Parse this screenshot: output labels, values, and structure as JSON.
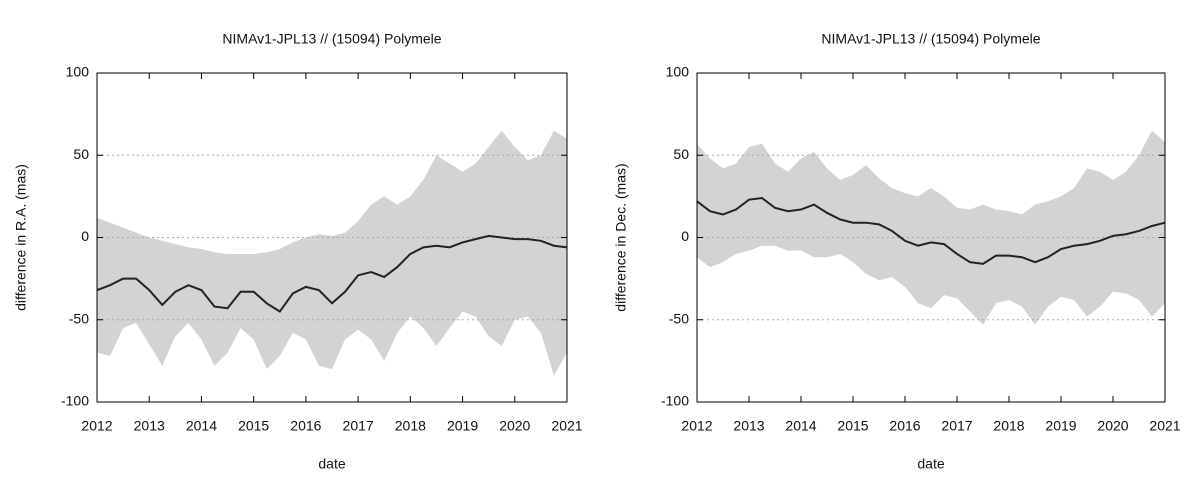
{
  "chart_data": [
    {
      "type": "line",
      "title": "NIMAv1-JPL13 // (15094) Polymele",
      "xlabel": "date",
      "ylabel": "difference in R.A. (mas)",
      "x": [
        2012,
        2012.25,
        2012.5,
        2012.75,
        2013,
        2013.25,
        2013.5,
        2013.75,
        2014,
        2014.25,
        2014.5,
        2014.75,
        2015,
        2015.25,
        2015.5,
        2015.75,
        2016,
        2016.25,
        2016.5,
        2016.75,
        2017,
        2017.25,
        2017.5,
        2017.75,
        2018,
        2018.25,
        2018.5,
        2018.75,
        2019,
        2019.25,
        2019.5,
        2019.75,
        2020,
        2020.25,
        2020.5,
        2020.75,
        2021
      ],
      "band": {
        "color": "#d3d3d3",
        "upper": [
          12,
          9,
          6,
          3,
          0,
          -2,
          -4,
          -6,
          -7,
          -9,
          -10,
          -10,
          -10,
          -9,
          -7,
          -3,
          0,
          2,
          1,
          3,
          10,
          20,
          25,
          20,
          25,
          35,
          50,
          45,
          40,
          45,
          55,
          65,
          55,
          47,
          50,
          65,
          60
        ],
        "lower": [
          -70,
          -72,
          -55,
          -52,
          -65,
          -78,
          -60,
          -52,
          -62,
          -78,
          -70,
          -55,
          -62,
          -80,
          -72,
          -58,
          -62,
          -78,
          -80,
          -62,
          -56,
          -62,
          -75,
          -58,
          -48,
          -55,
          -66,
          -55,
          -45,
          -48,
          -60,
          -66,
          -50,
          -48,
          -58,
          -84,
          -70
        ]
      },
      "series": [
        {
          "color": "#222222",
          "values": [
            -32,
            -29,
            -25,
            -25,
            -32,
            -41,
            -33,
            -29,
            -32,
            -42,
            -43,
            -33,
            -33,
            -40,
            -45,
            -34,
            -30,
            -32,
            -40,
            -33,
            -23,
            -21,
            -24,
            -18,
            -10,
            -6,
            -5,
            -6,
            -3,
            -1,
            1,
            0,
            -1,
            -1,
            -2,
            -5,
            -6
          ]
        }
      ],
      "xlim": [
        2012,
        2021
      ],
      "xticks": [
        2012,
        2013,
        2014,
        2015,
        2016,
        2017,
        2018,
        2019,
        2020,
        2021
      ],
      "ylim": [
        -100,
        100
      ],
      "yticks": [
        -100,
        -50,
        0,
        50,
        100
      ],
      "grid": true
    },
    {
      "type": "line",
      "title": "NIMAv1-JPL13 // (15094) Polymele",
      "xlabel": "date",
      "ylabel": "difference in Dec. (mas)",
      "x": [
        2012,
        2012.25,
        2012.5,
        2012.75,
        2013,
        2013.25,
        2013.5,
        2013.75,
        2014,
        2014.25,
        2014.5,
        2014.75,
        2015,
        2015.25,
        2015.5,
        2015.75,
        2016,
        2016.25,
        2016.5,
        2016.75,
        2017,
        2017.25,
        2017.5,
        2017.75,
        2018,
        2018.25,
        2018.5,
        2018.75,
        2019,
        2019.25,
        2019.5,
        2019.75,
        2020,
        2020.25,
        2020.5,
        2020.75,
        2021
      ],
      "band": {
        "color": "#d3d3d3",
        "upper": [
          57,
          48,
          42,
          45,
          55,
          57,
          45,
          40,
          48,
          52,
          42,
          35,
          38,
          44,
          36,
          30,
          27,
          25,
          30,
          25,
          18,
          17,
          20,
          17,
          16,
          14,
          20,
          22,
          25,
          30,
          42,
          40,
          35,
          40,
          50,
          65,
          58
        ],
        "lower": [
          -12,
          -18,
          -15,
          -10,
          -8,
          -5,
          -5,
          -8,
          -8,
          -12,
          -12,
          -10,
          -15,
          -22,
          -26,
          -24,
          -30,
          -40,
          -43,
          -35,
          -37,
          -45,
          -53,
          -40,
          -38,
          -42,
          -53,
          -42,
          -36,
          -38,
          -48,
          -42,
          -33,
          -34,
          -38,
          -48,
          -40
        ]
      },
      "series": [
        {
          "color": "#222222",
          "values": [
            22,
            16,
            14,
            17,
            23,
            24,
            18,
            16,
            17,
            20,
            15,
            11,
            9,
            9,
            8,
            4,
            -2,
            -5,
            -3,
            -4,
            -10,
            -15,
            -16,
            -11,
            -11,
            -12,
            -15,
            -12,
            -7,
            -5,
            -4,
            -2,
            1,
            2,
            4,
            7,
            9
          ]
        }
      ],
      "xlim": [
        2012,
        2021
      ],
      "xticks": [
        2012,
        2013,
        2014,
        2015,
        2016,
        2017,
        2018,
        2019,
        2020,
        2021
      ],
      "ylim": [
        -100,
        100
      ],
      "yticks": [
        -100,
        -50,
        0,
        50,
        100
      ],
      "grid": true
    }
  ]
}
